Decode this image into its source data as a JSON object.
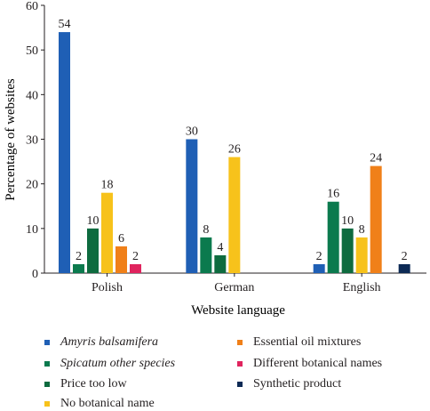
{
  "chart_data": {
    "type": "bar",
    "title": "",
    "xlabel": "Website language",
    "ylabel": "Percentage of websites",
    "ylim": [
      0,
      60
    ],
    "yticks": [
      0,
      10,
      20,
      30,
      40,
      50,
      60
    ],
    "grid": false,
    "legend_position": "bottom",
    "categories": [
      "Polish",
      "German",
      "English"
    ],
    "series": [
      {
        "name": "Amyris balsamifera",
        "italic": true,
        "color": "#1f5fb5",
        "values": [
          54,
          30,
          2
        ]
      },
      {
        "name": "Spicatum other species",
        "italic": true,
        "color": "#0b7a4e",
        "values": [
          2,
          8,
          16
        ]
      },
      {
        "name": "Price too low",
        "italic": false,
        "color": "#0e6b3f",
        "values": [
          10,
          4,
          10
        ]
      },
      {
        "name": "No botanical name",
        "italic": false,
        "color": "#f7c21b",
        "values": [
          18,
          26,
          8
        ]
      },
      {
        "name": "Essential oil mixtures",
        "italic": false,
        "color": "#f08019",
        "values": [
          6,
          null,
          24
        ]
      },
      {
        "name": "Different botanical names",
        "italic": false,
        "color": "#e0245e",
        "values": [
          2,
          null,
          null
        ]
      },
      {
        "name": "Synthetic product",
        "italic": false,
        "color": "#0d2a55",
        "values": [
          null,
          null,
          2
        ]
      }
    ]
  }
}
